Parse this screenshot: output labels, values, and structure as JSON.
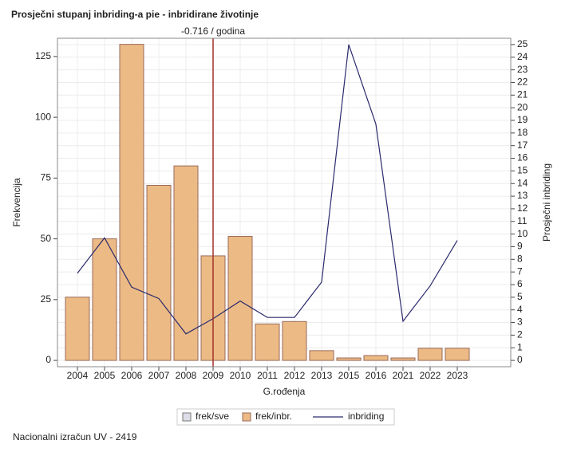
{
  "chart_data": {
    "type": "bar-line",
    "title": "Prosječni stupanj inbriding-a pie - inbridirane životinje",
    "xlabel": "G.rođenja",
    "ylabel": "Frekvencija",
    "y2label": "Prosječni inbriding",
    "footer": "Nacionalni izračun UV - 2419",
    "categories": [
      "2004",
      "2005",
      "2006",
      "2007",
      "2008",
      "2009",
      "2010",
      "2011",
      "2012",
      "2013",
      "2015",
      "2016",
      "2021",
      "2022",
      "2023"
    ],
    "series": [
      {
        "name": "frek/inbr.",
        "type": "bar",
        "color": "#ecbb85",
        "values": [
          26,
          50,
          130,
          72,
          80,
          43,
          51,
          15,
          16,
          4,
          1,
          2,
          1,
          5,
          5
        ]
      },
      {
        "name": "inbriding",
        "type": "line",
        "axis": "y2",
        "color": "#2a2a6e",
        "values": [
          6.9,
          9.7,
          5.8,
          4.9,
          2.1,
          3.3,
          4.7,
          3.4,
          3.4,
          6.2,
          25,
          18.7,
          3.1,
          5.9,
          9.5
        ]
      }
    ],
    "legend_only": {
      "name": "frek/sve",
      "color": "#dcdde8"
    },
    "reference_line": {
      "category": "2009",
      "label": "-0.716 / godina",
      "color": "#a0302a"
    },
    "ylim": [
      -2.6,
      132.5
    ],
    "yticks": [
      0,
      25,
      50,
      75,
      100,
      125
    ],
    "y2lim": [
      -0.5,
      25.5
    ],
    "y2ticks": [
      0,
      1,
      2,
      3,
      4,
      5,
      6,
      7,
      8,
      9,
      10,
      11,
      12,
      13,
      14,
      15,
      16,
      17,
      18,
      19,
      20,
      21,
      22,
      23,
      24,
      25
    ],
    "grid": true
  }
}
